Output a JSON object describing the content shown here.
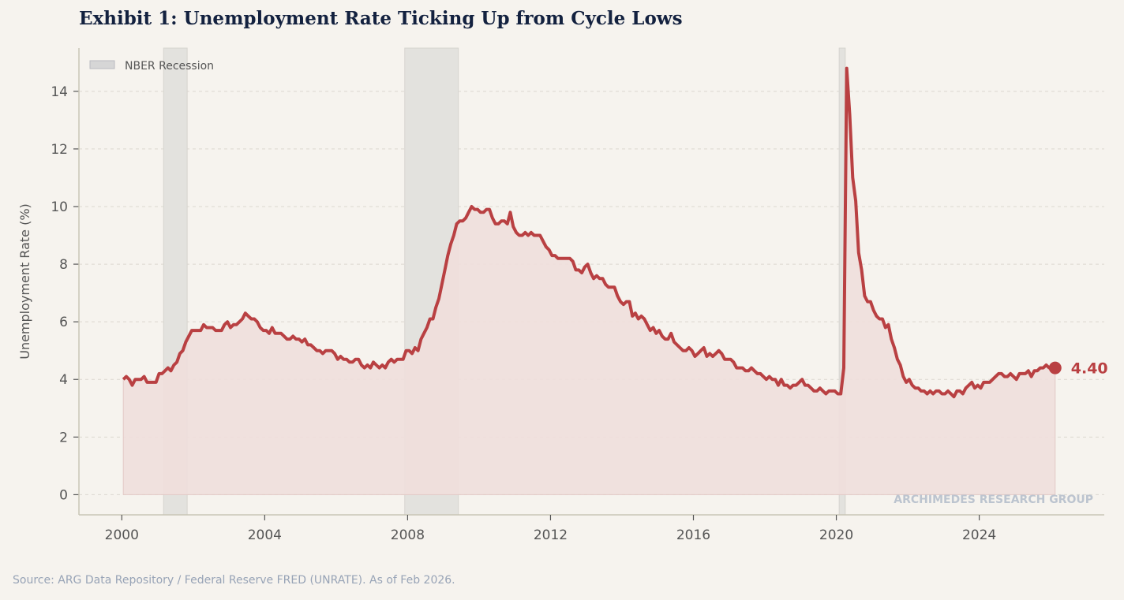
{
  "title": "Exhibit 1: Unemployment Rate Ticking Up from Cycle Lows",
  "source": "Source: ARG Data Repository / Federal Reserve FRED (UNRATE). As of Feb 2026.",
  "watermark": "ARCHIMEDES RESEARCH GROUP",
  "chart_data": {
    "type": "line",
    "title": "Exhibit 1: Unemployment Rate Ticking Up from Cycle Lows",
    "xlabel": "",
    "ylabel": "Unemployment Rate (%)",
    "xlim": [
      1998.8,
      2027.5
    ],
    "ylim": [
      -0.7,
      15.5
    ],
    "xticks": [
      "2000",
      "2004",
      "2008",
      "2012",
      "2016",
      "2020",
      "2024"
    ],
    "yticks": [
      "0",
      "2",
      "4",
      "6",
      "8",
      "10",
      "12",
      "14"
    ],
    "grid": "horizontal dashed",
    "legend": {
      "position": "top-left",
      "entries": [
        "NBER Recession"
      ]
    },
    "series": [
      {
        "frequency": "monthly",
        "start": "2000-01",
        "color": "#b94042",
        "fill": true,
        "values": [
          4.0,
          4.1,
          4.0,
          3.8,
          4.0,
          4.0,
          4.0,
          4.1,
          3.9,
          3.9,
          3.9,
          3.9,
          4.2,
          4.2,
          4.3,
          4.4,
          4.3,
          4.5,
          4.6,
          4.9,
          5.0,
          5.3,
          5.5,
          5.7,
          5.7,
          5.7,
          5.7,
          5.9,
          5.8,
          5.8,
          5.8,
          5.7,
          5.7,
          5.7,
          5.9,
          6.0,
          5.8,
          5.9,
          5.9,
          6.0,
          6.1,
          6.3,
          6.2,
          6.1,
          6.1,
          6.0,
          5.8,
          5.7,
          5.7,
          5.6,
          5.8,
          5.6,
          5.6,
          5.6,
          5.5,
          5.4,
          5.4,
          5.5,
          5.4,
          5.4,
          5.3,
          5.4,
          5.2,
          5.2,
          5.1,
          5.0,
          5.0,
          4.9,
          5.0,
          5.0,
          5.0,
          4.9,
          4.7,
          4.8,
          4.7,
          4.7,
          4.6,
          4.6,
          4.7,
          4.7,
          4.5,
          4.4,
          4.5,
          4.4,
          4.6,
          4.5,
          4.4,
          4.5,
          4.4,
          4.6,
          4.7,
          4.6,
          4.7,
          4.7,
          4.7,
          5.0,
          5.0,
          4.9,
          5.1,
          5.0,
          5.4,
          5.6,
          5.8,
          6.1,
          6.1,
          6.5,
          6.8,
          7.3,
          7.8,
          8.3,
          8.7,
          9.0,
          9.4,
          9.5,
          9.5,
          9.6,
          9.8,
          10.0,
          9.9,
          9.9,
          9.8,
          9.8,
          9.9,
          9.9,
          9.6,
          9.4,
          9.4,
          9.5,
          9.5,
          9.4,
          9.8,
          9.3,
          9.1,
          9.0,
          9.0,
          9.1,
          9.0,
          9.1,
          9.0,
          9.0,
          9.0,
          8.8,
          8.6,
          8.5,
          8.3,
          8.3,
          8.2,
          8.2,
          8.2,
          8.2,
          8.2,
          8.1,
          7.8,
          7.8,
          7.7,
          7.9,
          8.0,
          7.7,
          7.5,
          7.6,
          7.5,
          7.5,
          7.3,
          7.2,
          7.2,
          7.2,
          6.9,
          6.7,
          6.6,
          6.7,
          6.7,
          6.2,
          6.3,
          6.1,
          6.2,
          6.1,
          5.9,
          5.7,
          5.8,
          5.6,
          5.7,
          5.5,
          5.4,
          5.4,
          5.6,
          5.3,
          5.2,
          5.1,
          5.0,
          5.0,
          5.1,
          5.0,
          4.8,
          4.9,
          5.0,
          5.1,
          4.8,
          4.9,
          4.8,
          4.9,
          5.0,
          4.9,
          4.7,
          4.7,
          4.7,
          4.6,
          4.4,
          4.4,
          4.4,
          4.3,
          4.3,
          4.4,
          4.3,
          4.2,
          4.2,
          4.1,
          4.0,
          4.1,
          4.0,
          4.0,
          3.8,
          4.0,
          3.8,
          3.8,
          3.7,
          3.8,
          3.8,
          3.9,
          4.0,
          3.8,
          3.8,
          3.7,
          3.6,
          3.6,
          3.7,
          3.6,
          3.5,
          3.6,
          3.6,
          3.6,
          3.5,
          3.5,
          4.4,
          14.8,
          13.2,
          11.0,
          10.2,
          8.4,
          7.8,
          6.9,
          6.7,
          6.7,
          6.4,
          6.2,
          6.1,
          6.1,
          5.8,
          5.9,
          5.4,
          5.1,
          4.7,
          4.5,
          4.1,
          3.9,
          4.0,
          3.8,
          3.7,
          3.7,
          3.6,
          3.6,
          3.5,
          3.6,
          3.5,
          3.6,
          3.6,
          3.5,
          3.5,
          3.6,
          3.5,
          3.4,
          3.6,
          3.6,
          3.5,
          3.7,
          3.8,
          3.9,
          3.7,
          3.8,
          3.7,
          3.9,
          3.9,
          3.9,
          4.0,
          4.1,
          4.2,
          4.2,
          4.1,
          4.1,
          4.2,
          4.1,
          4.0,
          4.2,
          4.2,
          4.2,
          4.3,
          4.1,
          4.3,
          4.3,
          4.4,
          4.4,
          4.5,
          4.4,
          4.4,
          4.4
        ]
      }
    ],
    "recessions": [
      {
        "start": 2001.17,
        "end": 2001.83
      },
      {
        "start": 2007.92,
        "end": 2009.42
      },
      {
        "start": 2020.08,
        "end": 2020.25
      }
    ],
    "colors": {
      "line": "#b94042",
      "fill": "#efdfdc",
      "recession": "#e3e2de",
      "title": "#13213f"
    },
    "annotations": [
      {
        "label": "4.40",
        "value": 4.4,
        "date": "2026-02"
      }
    ]
  }
}
